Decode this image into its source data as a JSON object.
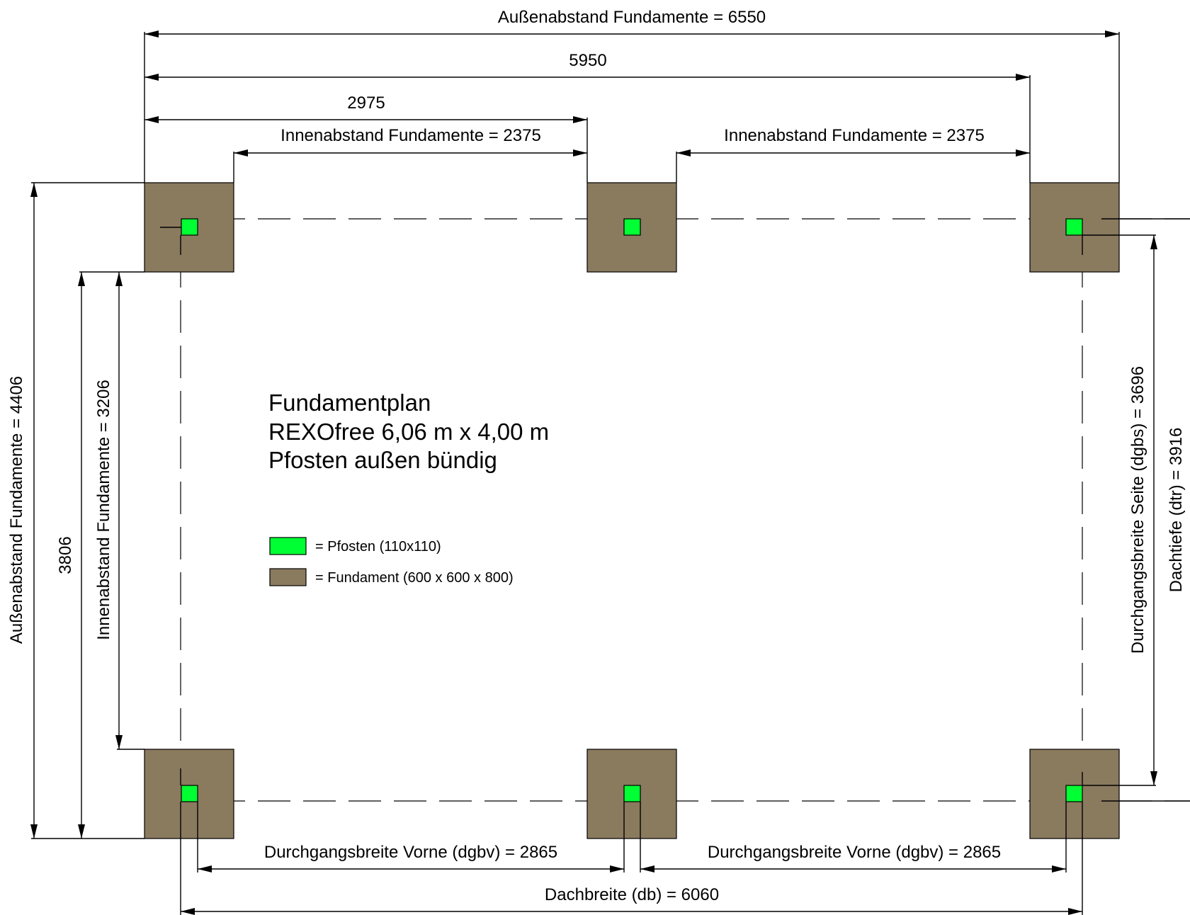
{
  "title": {
    "line1": "Fundamentplan",
    "line2": "REXOfree 6,06 m x 4,00 m",
    "line3": "Pfosten außen bündig"
  },
  "dimensions": {
    "outer_width": "Außenabstand Fundamente = 6550",
    "width_5950": "5950",
    "width_2975": "2975",
    "inner_left": "Innenabstand Fundamente = 2375",
    "inner_right": "Innenabstand Fundamente = 2375",
    "outer_depth": "Außenabstand Fundamente = 4406",
    "depth_3806": "3806",
    "inner_depth": "Innenabstand Fundamente = 3206",
    "passage_side": "Durchgangsbreite Seite (dgbs) = 3696",
    "roof_depth": "Dachtiefe (dtr) = 3916",
    "passage_front_left": "Durchgangsbreite Vorne (dgbv) = 2865",
    "passage_front_right": "Durchgangsbreite Vorne (dgbv) = 2865",
    "roof_width": "Dachbreite (db) = 6060"
  },
  "legend": {
    "post": "= Pfosten (110x110)",
    "foundation": "= Fundament (600 x 600 x 800)"
  },
  "colors": {
    "foundation": "#8a7a5e",
    "post": "#00ff33"
  }
}
